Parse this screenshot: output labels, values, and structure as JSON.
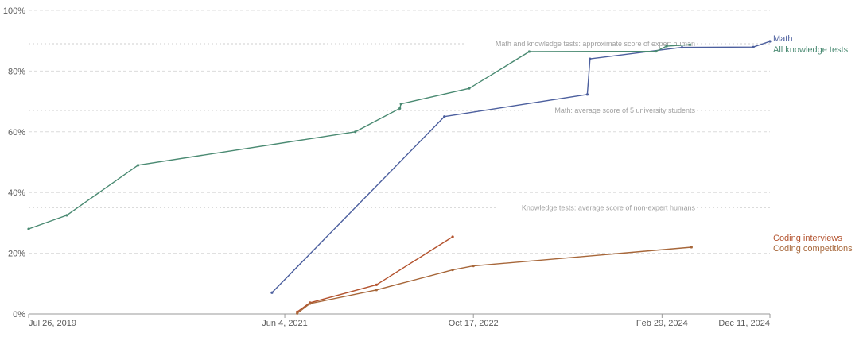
{
  "chart_data": {
    "type": "line",
    "title": "",
    "xlabel": "",
    "ylabel": "",
    "xlim": [
      "2019-07-26",
      "2024-12-11"
    ],
    "ylim": [
      0,
      100
    ],
    "grid": true,
    "legend_placement": "right, at line ends",
    "y_ticks": [
      {
        "value": 0,
        "label": "0%"
      },
      {
        "value": 20,
        "label": "20%"
      },
      {
        "value": 40,
        "label": "40%"
      },
      {
        "value": 60,
        "label": "60%"
      },
      {
        "value": 80,
        "label": "80%"
      },
      {
        "value": 100,
        "label": "100%"
      }
    ],
    "x_ticks": [
      {
        "value": "2019-07-26",
        "label": "Jul 26, 2019"
      },
      {
        "value": "2021-06-04",
        "label": "Jun 4, 2021"
      },
      {
        "value": "2022-10-17",
        "label": "Oct 17, 2022"
      },
      {
        "value": "2024-02-29",
        "label": "Feb 29, 2024"
      },
      {
        "value": "2024-12-11",
        "label": "Dec 11, 2024"
      }
    ],
    "reference_lines": [
      {
        "value": 89,
        "label": "Math and knowledge tests: approximate score of expert human"
      },
      {
        "value": 67,
        "label": "Math: average score of 5 university students"
      },
      {
        "value": 35,
        "label": "Knowledge tests: average score of non-expert humans"
      }
    ],
    "series": [
      {
        "name": "Math",
        "color": "#4c5f9e",
        "points": [
          {
            "x": "2021-05-01",
            "y": 7
          },
          {
            "x": "2022-08-01",
            "y": 65
          },
          {
            "x": "2023-08-15",
            "y": 72.3
          },
          {
            "x": "2023-08-22",
            "y": 84
          },
          {
            "x": "2024-04-22",
            "y": 87.8
          },
          {
            "x": "2024-10-28",
            "y": 87.9
          },
          {
            "x": "2024-12-11",
            "y": 89.8
          }
        ]
      },
      {
        "name": "All knowledge tests",
        "color": "#4a8a72",
        "points": [
          {
            "x": "2019-07-26",
            "y": 28
          },
          {
            "x": "2019-11-04",
            "y": 32.5
          },
          {
            "x": "2020-05-11",
            "y": 49
          },
          {
            "x": "2021-12-08",
            "y": 60
          },
          {
            "x": "2022-04-05",
            "y": 67.7
          },
          {
            "x": "2022-04-08",
            "y": 69.2
          },
          {
            "x": "2022-10-06",
            "y": 74.3
          },
          {
            "x": "2023-03-14",
            "y": 86.4
          },
          {
            "x": "2024-02-13",
            "y": 86.5
          },
          {
            "x": "2024-03-12",
            "y": 88.2
          },
          {
            "x": "2024-05-13",
            "y": 88.7
          }
        ]
      },
      {
        "name": "Coding interviews",
        "color": "#b3522d",
        "points": [
          {
            "x": "2021-07-07",
            "y": 0.7
          },
          {
            "x": "2021-08-10",
            "y": 3.7
          },
          {
            "x": "2022-02-02",
            "y": 9.6
          },
          {
            "x": "2022-08-23",
            "y": 25.4
          }
        ]
      },
      {
        "name": "Coding competitions",
        "color": "#a7673a",
        "points": [
          {
            "x": "2021-07-07",
            "y": 0.2
          },
          {
            "x": "2021-08-10",
            "y": 3.4
          },
          {
            "x": "2022-02-02",
            "y": 7.9
          },
          {
            "x": "2022-08-23",
            "y": 14.5
          },
          {
            "x": "2022-10-17",
            "y": 15.8
          },
          {
            "x": "2024-05-17",
            "y": 22
          }
        ]
      }
    ]
  }
}
